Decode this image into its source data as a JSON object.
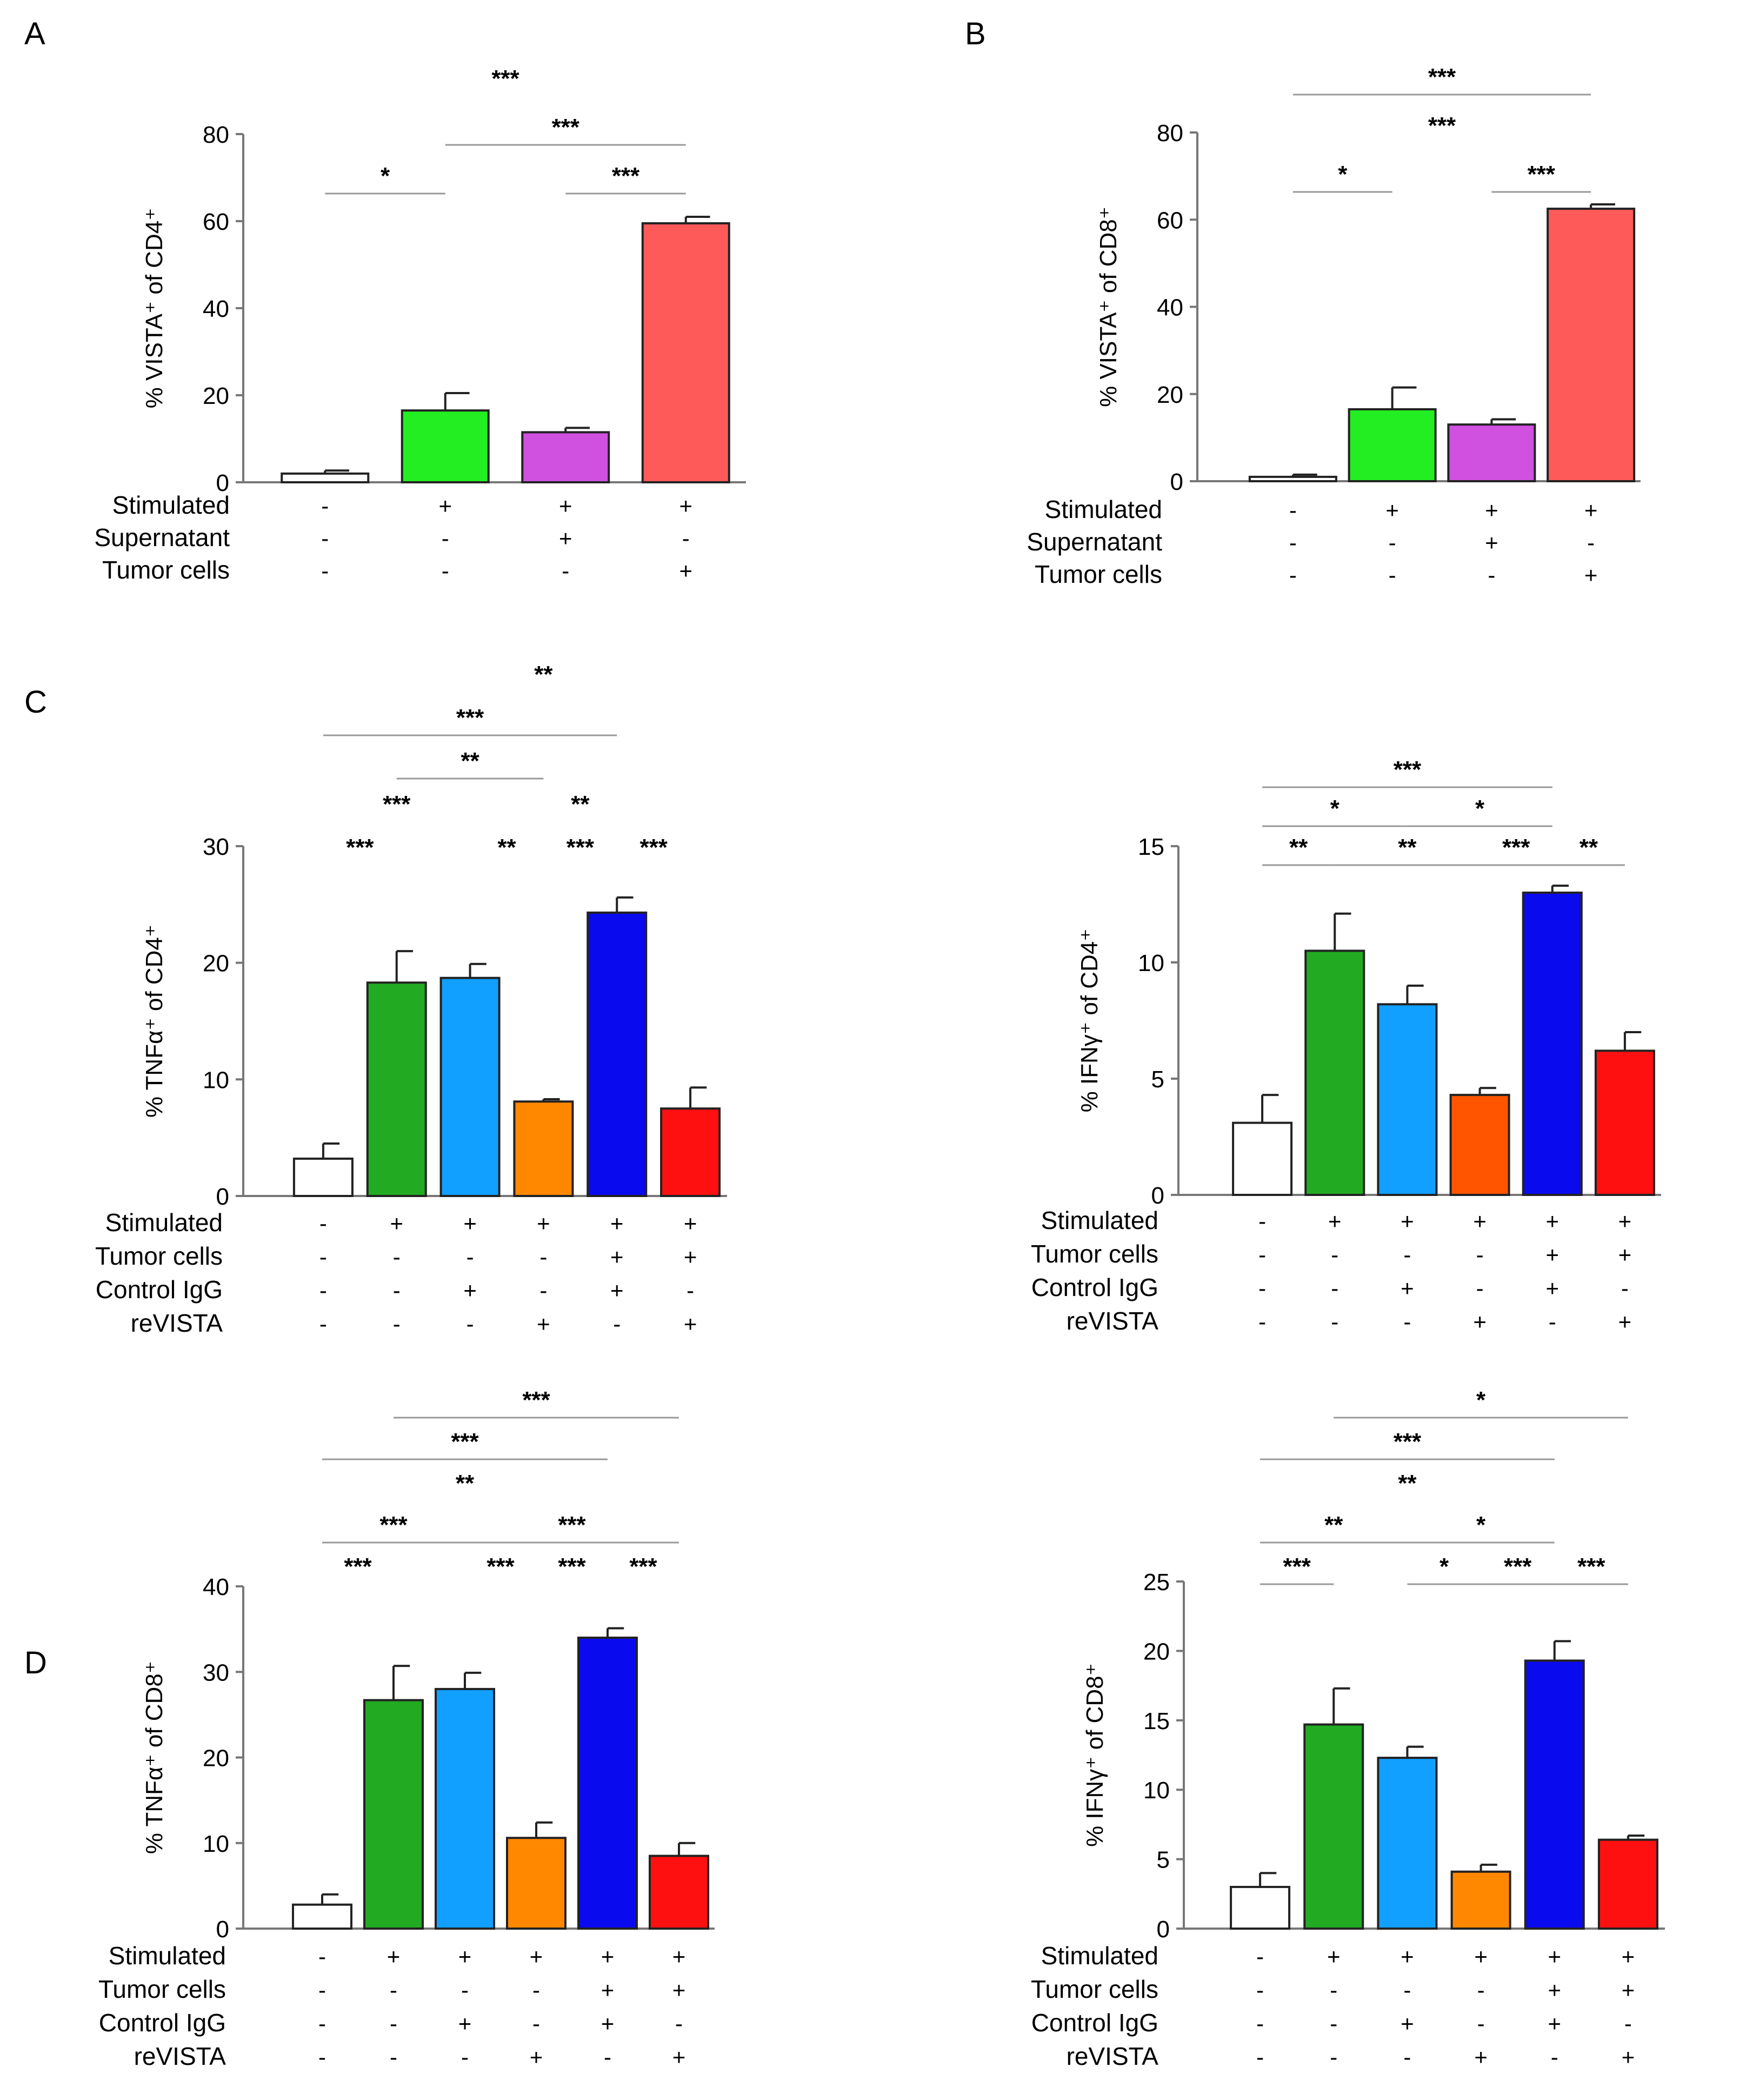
{
  "panel_letters": [
    "A",
    "B",
    "C",
    "D"
  ],
  "chart_data": [
    {
      "id": "A",
      "type": "bar",
      "ylabel": "% VISTA⁺ of CD4⁺",
      "ylim": [
        0,
        80
      ],
      "yticks": [
        0,
        20,
        40,
        60,
        80
      ],
      "colors": [
        "#ffffff",
        "#22ee22",
        "#d050e0",
        "#ff5a5a"
      ],
      "values": [
        2,
        16.5,
        11.5,
        59.5
      ],
      "errors": [
        0.7,
        4,
        1,
        1.5
      ],
      "rows": [
        {
          "label": "Stimulated",
          "signs": [
            "-",
            "+",
            "+",
            "+"
          ]
        },
        {
          "label": "Supernatant",
          "signs": [
            "-",
            "-",
            "+",
            "-"
          ]
        },
        {
          "label": "Tumor cells",
          "signs": [
            "-",
            "-",
            "-",
            "+"
          ]
        }
      ],
      "sig": [
        {
          "a": 0,
          "b": 1,
          "label": "*",
          "level": 1
        },
        {
          "a": 2,
          "b": 3,
          "label": "***",
          "level": 1
        },
        {
          "a": 1,
          "b": 3,
          "label": "***",
          "level": 2
        },
        {
          "a": null,
          "b": null,
          "label": "***",
          "level": 3
        }
      ]
    },
    {
      "id": "B",
      "type": "bar",
      "ylabel": "% VISTA⁺ of CD8⁺",
      "ylim": [
        0,
        80
      ],
      "yticks": [
        0,
        20,
        40,
        60,
        80
      ],
      "colors": [
        "#ffffff",
        "#22ee22",
        "#d050e0",
        "#ff5a5a"
      ],
      "values": [
        1,
        16.5,
        13,
        62.5
      ],
      "errors": [
        0.5,
        5,
        1.2,
        1
      ],
      "rows": [
        {
          "label": "Stimulated",
          "signs": [
            "-",
            "+",
            "+",
            "+"
          ]
        },
        {
          "label": "Supernatant",
          "signs": [
            "-",
            "-",
            "+",
            "-"
          ]
        },
        {
          "label": "Tumor cells",
          "signs": [
            "-",
            "-",
            "-",
            "+"
          ]
        }
      ],
      "sig": [
        {
          "a": 0,
          "b": 1,
          "label": "*",
          "level": 1
        },
        {
          "a": 2,
          "b": 3,
          "label": "***",
          "level": 1
        },
        {
          "a": null,
          "b": null,
          "label": "***",
          "level": 2
        },
        {
          "a": 0,
          "b": 3,
          "label": "***",
          "level": 3
        }
      ]
    },
    {
      "id": "C-left",
      "type": "bar",
      "ylabel": "% TNFα⁺ of CD4⁺",
      "ylim": [
        0,
        30
      ],
      "yticks": [
        0,
        10,
        20,
        30
      ],
      "colors": [
        "#ffffff",
        "#22aa22",
        "#11a0ff",
        "#ff8800",
        "#0a0aee",
        "#ff1010"
      ],
      "values": [
        3.2,
        18.3,
        18.7,
        8.1,
        24.3,
        7.5
      ],
      "errors": [
        1.3,
        2.7,
        1.2,
        0.2,
        1.3,
        1.8
      ],
      "rows": [
        {
          "label": "Stimulated",
          "signs": [
            "-",
            "+",
            "+",
            "+",
            "+",
            "+"
          ]
        },
        {
          "label": "Tumor cells",
          "signs": [
            "-",
            "-",
            "-",
            "-",
            "+",
            "+"
          ]
        },
        {
          "label": "Control IgG",
          "signs": [
            "-",
            "-",
            "+",
            "-",
            "+",
            "-"
          ]
        },
        {
          "label": "reVISTA",
          "signs": [
            "-",
            "-",
            "-",
            "+",
            "-",
            "+"
          ]
        }
      ],
      "sig": [
        {
          "a": null,
          "b": null,
          "at": 0.5,
          "label": "***",
          "level": 1
        },
        {
          "a": null,
          "b": null,
          "at": 2.5,
          "label": "**",
          "level": 1
        },
        {
          "a": null,
          "b": null,
          "at": 3.5,
          "label": "***",
          "level": 1
        },
        {
          "a": null,
          "b": null,
          "at": 4.5,
          "label": "***",
          "level": 1
        },
        {
          "a": null,
          "b": null,
          "at": 1,
          "label": "***",
          "level": 2
        },
        {
          "a": null,
          "b": null,
          "at": 3.5,
          "label": "**",
          "level": 2
        },
        {
          "a": 1,
          "b": 3,
          "label": "**",
          "level": 3
        },
        {
          "a": 0,
          "b": 4,
          "label": "***",
          "level": 4
        },
        {
          "a": null,
          "b": null,
          "at": 3,
          "label": "**",
          "level": 5
        }
      ]
    },
    {
      "id": "C-right",
      "type": "bar",
      "ylabel": "% IFNγ⁺ of CD4⁺",
      "ylim": [
        0,
        15
      ],
      "yticks": [
        0,
        5,
        10,
        15
      ],
      "colors": [
        "#ffffff",
        "#22aa22",
        "#11a0ff",
        "#ff5500",
        "#0a0aee",
        "#ff1010"
      ],
      "values": [
        3.1,
        10.5,
        8.2,
        4.3,
        13,
        6.2
      ],
      "errors": [
        1.2,
        1.6,
        0.8,
        0.3,
        0.3,
        0.8
      ],
      "rows": [
        {
          "label": "Stimulated",
          "signs": [
            "-",
            "+",
            "+",
            "+",
            "+",
            "+"
          ]
        },
        {
          "label": "Tumor cells",
          "signs": [
            "-",
            "-",
            "-",
            "-",
            "+",
            "+"
          ]
        },
        {
          "label": "Control IgG",
          "signs": [
            "-",
            "-",
            "+",
            "-",
            "+",
            "-"
          ]
        },
        {
          "label": "reVISTA",
          "signs": [
            "-",
            "-",
            "-",
            "+",
            "-",
            "+"
          ]
        }
      ],
      "sig": [
        {
          "a": 0,
          "b": 1,
          "label": "**",
          "level": 1
        },
        {
          "a": 1,
          "b": 3,
          "label": "**",
          "level": 1
        },
        {
          "a": 3,
          "b": 4,
          "label": "***",
          "level": 1
        },
        {
          "a": 4,
          "b": 5,
          "label": "**",
          "level": 1
        },
        {
          "a": 0,
          "b": 2,
          "label": "*",
          "level": 2
        },
        {
          "a": 2,
          "b": 4,
          "label": "*",
          "level": 2
        },
        {
          "a": 0,
          "b": 4,
          "label": "***",
          "level": 3
        }
      ]
    },
    {
      "id": "D-left",
      "type": "bar",
      "ylabel": "% TNFα⁺ of CD8⁺",
      "ylim": [
        0,
        40
      ],
      "yticks": [
        0,
        10,
        20,
        30,
        40
      ],
      "colors": [
        "#ffffff",
        "#22aa22",
        "#11a0ff",
        "#ff8800",
        "#0a0aee",
        "#ff1010"
      ],
      "values": [
        2.8,
        26.7,
        28,
        10.6,
        34,
        8.5
      ],
      "errors": [
        1.2,
        4,
        1.9,
        1.8,
        1.1,
        1.5
      ],
      "rows": [
        {
          "label": "Stimulated",
          "signs": [
            "-",
            "+",
            "+",
            "+",
            "+",
            "+"
          ]
        },
        {
          "label": "Tumor cells",
          "signs": [
            "-",
            "-",
            "-",
            "-",
            "+",
            "+"
          ]
        },
        {
          "label": "Control IgG",
          "signs": [
            "-",
            "-",
            "+",
            "-",
            "+",
            "-"
          ]
        },
        {
          "label": "reVISTA",
          "signs": [
            "-",
            "-",
            "-",
            "+",
            "-",
            "+"
          ]
        }
      ],
      "sig": [
        {
          "a": null,
          "b": null,
          "at": 0.5,
          "label": "***",
          "level": 1
        },
        {
          "a": null,
          "b": null,
          "at": 2.5,
          "label": "***",
          "level": 1
        },
        {
          "a": null,
          "b": null,
          "at": 3.5,
          "label": "***",
          "level": 1
        },
        {
          "a": null,
          "b": null,
          "at": 4.5,
          "label": "***",
          "level": 1
        },
        {
          "a": 0,
          "b": 2,
          "label": "***",
          "level": 2
        },
        {
          "a": 2,
          "b": 5,
          "label": "***",
          "level": 2
        },
        {
          "a": null,
          "b": null,
          "at": 2,
          "label": "**",
          "level": 3
        },
        {
          "a": 0,
          "b": 4,
          "label": "***",
          "level": 4
        },
        {
          "a": 1,
          "b": 5,
          "label": "***",
          "level": 5
        }
      ]
    },
    {
      "id": "D-right",
      "type": "bar",
      "ylabel": "% IFNγ⁺ of CD8⁺",
      "ylim": [
        0,
        25
      ],
      "yticks": [
        0,
        5,
        10,
        15,
        20,
        25
      ],
      "colors": [
        "#ffffff",
        "#22aa22",
        "#11a0ff",
        "#ff8800",
        "#0a0aee",
        "#ff1010"
      ],
      "values": [
        3,
        14.7,
        12.3,
        4.1,
        19.3,
        6.4
      ],
      "errors": [
        1,
        2.6,
        0.8,
        0.5,
        1.4,
        0.3
      ],
      "rows": [
        {
          "label": "Stimulated",
          "signs": [
            "-",
            "+",
            "+",
            "+",
            "+",
            "+"
          ]
        },
        {
          "label": "Tumor cells",
          "signs": [
            "-",
            "-",
            "-",
            "-",
            "+",
            "+"
          ]
        },
        {
          "label": "Control IgG",
          "signs": [
            "-",
            "-",
            "+",
            "-",
            "+",
            "-"
          ]
        },
        {
          "label": "reVISTA",
          "signs": [
            "-",
            "-",
            "-",
            "+",
            "-",
            "+"
          ]
        }
      ],
      "sig": [
        {
          "a": 0,
          "b": 1,
          "label": "***",
          "level": 1
        },
        {
          "a": 2,
          "b": 3,
          "label": "*",
          "level": 1
        },
        {
          "a": 3,
          "b": 4,
          "label": "***",
          "level": 1
        },
        {
          "a": 4,
          "b": 5,
          "label": "***",
          "level": 1
        },
        {
          "a": 0,
          "b": 2,
          "label": "**",
          "level": 2
        },
        {
          "a": 2,
          "b": 4,
          "label": "*",
          "level": 2
        },
        {
          "a": null,
          "b": null,
          "at": 2,
          "label": "**",
          "level": 3
        },
        {
          "a": 0,
          "b": 4,
          "label": "***",
          "level": 4
        },
        {
          "a": 1,
          "b": 5,
          "label": "*",
          "level": 5
        }
      ]
    }
  ]
}
